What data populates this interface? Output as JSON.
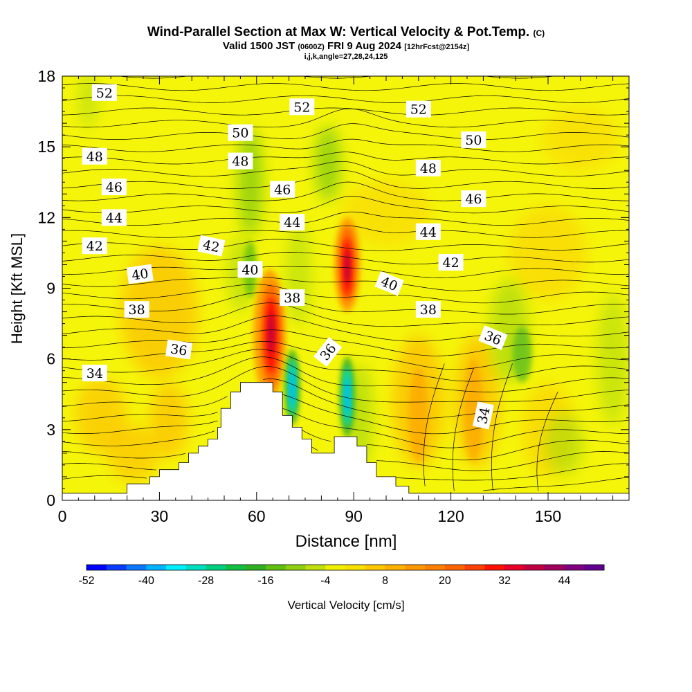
{
  "title": {
    "line1": "Wind-Parallel Section at Max W: Vertical Velocity & Pot.Temp.",
    "line1_unit": "(C)",
    "line2_a": "Valid 1500 JST",
    "line2_b": "(0600Z)",
    "line2_c": "FRI 9 Aug 2024",
    "line2_d": "[12hrFcst@2154z]",
    "line3": "i,j,k,angle=27,28,24,125"
  },
  "chart_data": {
    "type": "heatmap",
    "xlabel": "Distance [nm]",
    "ylabel": "Height [Kft MSL]",
    "xlim": [
      0,
      175
    ],
    "ylim": [
      0,
      18
    ],
    "xticks": [
      0,
      30,
      60,
      90,
      120,
      150
    ],
    "yticks": [
      0,
      3,
      6,
      9,
      12,
      15,
      18
    ],
    "background_color": "#f5f50a",
    "colorbar": {
      "label": "Vertical Velocity [cm/s]",
      "tick_labels": [
        "-52",
        "-40",
        "-28",
        "-16",
        "-4",
        "8",
        "20",
        "32",
        "44"
      ],
      "colors": [
        "#0000ff",
        "#0a3cff",
        "#0a78ff",
        "#00b4ff",
        "#00f0ff",
        "#00e0c0",
        "#00d080",
        "#10c040",
        "#30b020",
        "#60c010",
        "#90d010",
        "#c0e010",
        "#f0f000",
        "#f8e000",
        "#ffc800",
        "#ffb000",
        "#ff9800",
        "#ff8000",
        "#ff6400",
        "#ff4000",
        "#ff1000",
        "#e8002a",
        "#c00040",
        "#a00060",
        "#800080",
        "#600090"
      ]
    },
    "terrain_profile": [
      [
        0,
        0.3
      ],
      [
        20,
        0.3
      ],
      [
        20,
        0.7
      ],
      [
        27,
        0.7
      ],
      [
        27,
        1.0
      ],
      [
        30,
        1.0
      ],
      [
        30,
        1.3
      ],
      [
        36,
        1.3
      ],
      [
        36,
        1.6
      ],
      [
        39,
        1.6
      ],
      [
        39,
        2.0
      ],
      [
        42,
        2.0
      ],
      [
        42,
        2.3
      ],
      [
        45,
        2.3
      ],
      [
        45,
        2.6
      ],
      [
        48,
        2.6
      ],
      [
        48,
        3.1
      ],
      [
        49,
        3.1
      ],
      [
        49,
        3.9
      ],
      [
        52,
        3.9
      ],
      [
        52,
        4.6
      ],
      [
        55,
        4.6
      ],
      [
        55,
        5.0
      ],
      [
        65,
        5.0
      ],
      [
        65,
        4.6
      ],
      [
        68,
        4.6
      ],
      [
        68,
        3.6
      ],
      [
        71,
        3.6
      ],
      [
        71,
        3.1
      ],
      [
        74,
        3.1
      ],
      [
        74,
        2.6
      ],
      [
        77,
        2.6
      ],
      [
        77,
        2.0
      ],
      [
        84,
        2.0
      ],
      [
        84,
        2.7
      ],
      [
        91,
        2.7
      ],
      [
        91,
        2.3
      ],
      [
        94,
        2.3
      ],
      [
        94,
        1.6
      ],
      [
        97,
        1.6
      ],
      [
        97,
        1.0
      ],
      [
        103,
        1.0
      ],
      [
        103,
        0.6
      ],
      [
        107,
        0.6
      ],
      [
        107,
        0.3
      ],
      [
        175,
        0.3
      ]
    ],
    "contour_label_key": "potential temperature (C)",
    "contour_labels": [
      {
        "text": "52",
        "x": 13,
        "y": 17.3,
        "angle": 0
      },
      {
        "text": "52",
        "x": 74,
        "y": 16.7,
        "angle": 0
      },
      {
        "text": "52",
        "x": 110,
        "y": 16.6,
        "angle": 0
      },
      {
        "text": "50",
        "x": 55,
        "y": 15.6,
        "angle": 0
      },
      {
        "text": "50",
        "x": 127,
        "y": 15.3,
        "angle": 0
      },
      {
        "text": "48",
        "x": 10,
        "y": 14.6,
        "angle": 0
      },
      {
        "text": "48",
        "x": 55,
        "y": 14.4,
        "angle": 0
      },
      {
        "text": "48",
        "x": 113,
        "y": 14.1,
        "angle": 0
      },
      {
        "text": "46",
        "x": 16,
        "y": 13.3,
        "angle": 0
      },
      {
        "text": "46",
        "x": 68,
        "y": 13.2,
        "angle": 0
      },
      {
        "text": "46",
        "x": 127,
        "y": 12.8,
        "angle": 0
      },
      {
        "text": "44",
        "x": 16,
        "y": 12.0,
        "angle": 0
      },
      {
        "text": "44",
        "x": 71,
        "y": 11.8,
        "angle": 0
      },
      {
        "text": "44",
        "x": 113,
        "y": 11.4,
        "angle": 0
      },
      {
        "text": "42",
        "x": 10,
        "y": 10.8,
        "angle": 0
      },
      {
        "text": "42",
        "x": 46,
        "y": 10.8,
        "angle": 12
      },
      {
        "text": "42",
        "x": 120,
        "y": 10.1,
        "angle": 0
      },
      {
        "text": "40",
        "x": 24,
        "y": 9.6,
        "angle": -8
      },
      {
        "text": "40",
        "x": 58,
        "y": 9.8,
        "angle": 0
      },
      {
        "text": "40",
        "x": 101,
        "y": 9.2,
        "angle": 22
      },
      {
        "text": "38",
        "x": 23,
        "y": 8.1,
        "angle": 0
      },
      {
        "text": "38",
        "x": 71,
        "y": 8.6,
        "angle": 0
      },
      {
        "text": "38",
        "x": 113,
        "y": 8.1,
        "angle": 0
      },
      {
        "text": "36",
        "x": 36,
        "y": 6.4,
        "angle": 8
      },
      {
        "text": "36",
        "x": 82,
        "y": 6.3,
        "angle": -52
      },
      {
        "text": "36",
        "x": 133,
        "y": 6.9,
        "angle": 22
      },
      {
        "text": "34",
        "x": 10,
        "y": 5.4,
        "angle": 0
      },
      {
        "text": "34",
        "x": 130,
        "y": 3.6,
        "angle": -78
      }
    ]
  }
}
